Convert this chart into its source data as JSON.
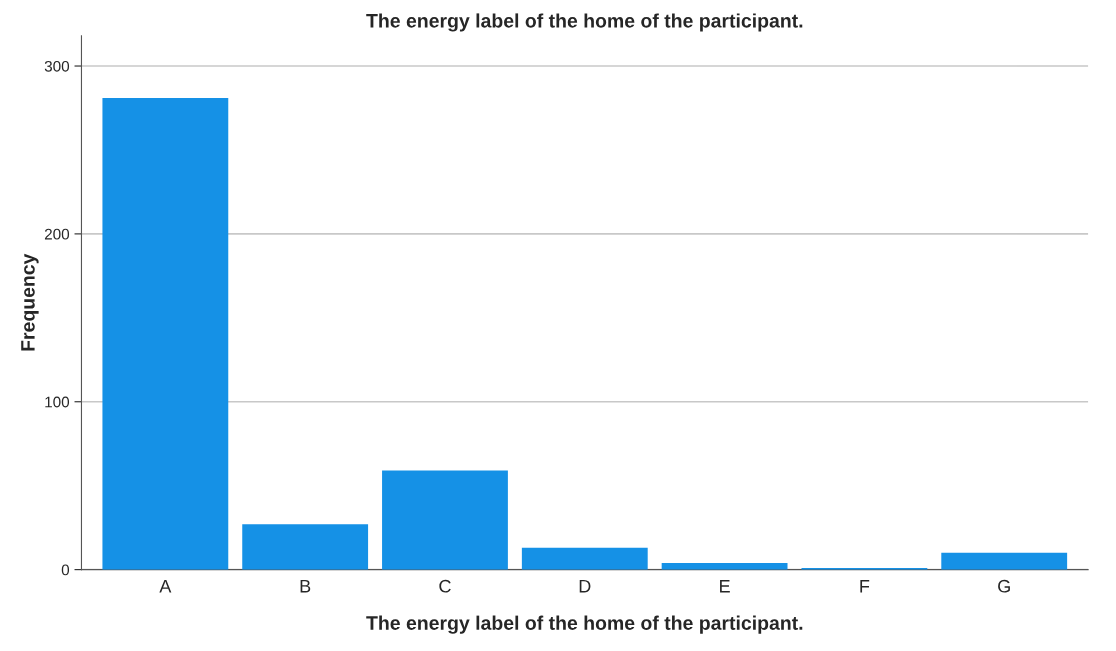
{
  "chart_data": {
    "type": "bar",
    "title": "The energy label of the home of the participant.",
    "xlabel": "The energy label of the home of the participant.",
    "ylabel": "Frequency",
    "categories": [
      "A",
      "B",
      "C",
      "D",
      "E",
      "F",
      "G"
    ],
    "values": [
      281,
      27,
      59,
      13,
      4,
      1,
      10
    ],
    "color": "#1591e6",
    "ylim": [
      0,
      318
    ],
    "yticks": [
      0,
      100,
      200,
      300
    ],
    "grid": "y"
  }
}
